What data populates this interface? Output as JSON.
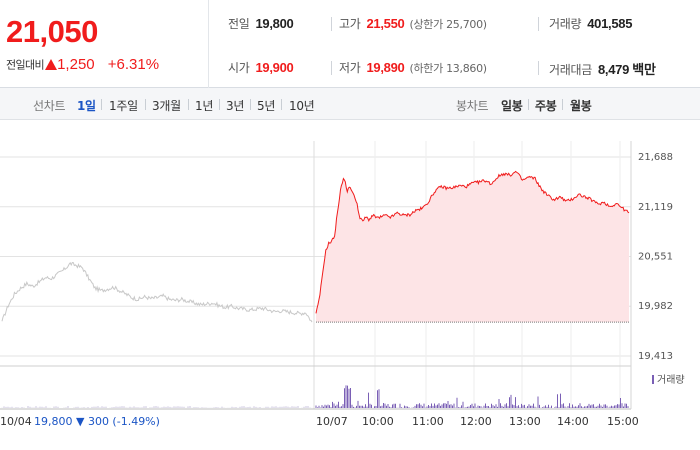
{
  "quote": {
    "price": "21,050",
    "change_caption": "전일대비",
    "change_amount": "1,250",
    "change_rate": "+6.31%",
    "direction": "up",
    "up_color": "#f01c1c",
    "down_color": "#1b55c5"
  },
  "stats": {
    "prev_close": {
      "label": "전일",
      "value": "19,800"
    },
    "high": {
      "label": "고가",
      "value": "21,550",
      "sub": "(상한가 25,700)"
    },
    "volume": {
      "label": "거래량",
      "value": "401,585"
    },
    "open": {
      "label": "시가",
      "value": "19,900"
    },
    "low": {
      "label": "저가",
      "value": "19,890",
      "sub": "(하한가 13,860)"
    },
    "trade_value": {
      "label": "거래대금",
      "value": "8,479 백만"
    }
  },
  "line_tabs": {
    "caption": "선차트",
    "items": [
      {
        "label": "1일",
        "active": true
      },
      {
        "label": "1주일",
        "active": false
      },
      {
        "label": "3개월",
        "active": false
      },
      {
        "label": "1년",
        "active": false
      },
      {
        "label": "3년",
        "active": false
      },
      {
        "label": "5년",
        "active": false
      },
      {
        "label": "10년",
        "active": false
      }
    ]
  },
  "candle_tabs": {
    "caption": "봉차트",
    "items": [
      {
        "label": "일봉"
      },
      {
        "label": "주봉"
      },
      {
        "label": "월봉"
      }
    ]
  },
  "chart": {
    "prev_day": {
      "date": "10/04",
      "close": "19,800",
      "change": "300",
      "rate": "(-1.49%)"
    },
    "volume_legend": "거래량",
    "colors": {
      "today_line": "#f01c1c",
      "today_fill": "#fde4e6",
      "prev_line": "#c8c8c8",
      "volume_bar": "#7a5fb5",
      "grid": "#e3e3e3"
    }
  },
  "chart_data": {
    "type": "line",
    "title": "",
    "y_ticks": [
      "21,688",
      "21,119",
      "20,551",
      "19,982",
      "19,413"
    ],
    "y_tick_values": [
      21688,
      21119,
      20551,
      19982,
      19413
    ],
    "ylim": [
      19413,
      21688
    ],
    "x_labels": [
      "10/04",
      "10/07",
      "10:00",
      "11:00",
      "12:00",
      "13:00",
      "14:00",
      "15:00"
    ],
    "reference_value": 19800,
    "series": [
      {
        "day": "10/04",
        "points": [
          [
            0,
            19810
          ],
          [
            0.02,
            19990
          ],
          [
            0.04,
            20120
          ],
          [
            0.06,
            20190
          ],
          [
            0.08,
            20240
          ],
          [
            0.1,
            20210
          ],
          [
            0.12,
            20260
          ],
          [
            0.14,
            20310
          ],
          [
            0.16,
            20300
          ],
          [
            0.18,
            20350
          ],
          [
            0.2,
            20400
          ],
          [
            0.22,
            20470
          ],
          [
            0.24,
            20450
          ],
          [
            0.26,
            20420
          ],
          [
            0.28,
            20300
          ],
          [
            0.3,
            20190
          ],
          [
            0.32,
            20160
          ],
          [
            0.34,
            20180
          ],
          [
            0.36,
            20200
          ],
          [
            0.38,
            20160
          ],
          [
            0.4,
            20120
          ],
          [
            0.42,
            20080
          ],
          [
            0.44,
            20060
          ],
          [
            0.46,
            20090
          ],
          [
            0.48,
            20070
          ],
          [
            0.5,
            20080
          ],
          [
            0.52,
            20100
          ],
          [
            0.54,
            20060
          ],
          [
            0.56,
            20050
          ],
          [
            0.58,
            20060
          ],
          [
            0.6,
            20040
          ],
          [
            0.62,
            20020
          ],
          [
            0.64,
            20000
          ],
          [
            0.66,
            20010
          ],
          [
            0.68,
            20020
          ],
          [
            0.7,
            19990
          ],
          [
            0.72,
            19970
          ],
          [
            0.74,
            19980
          ],
          [
            0.76,
            19960
          ],
          [
            0.78,
            19950
          ],
          [
            0.8,
            19940
          ],
          [
            0.82,
            19950
          ],
          [
            0.84,
            19960
          ],
          [
            0.86,
            19940
          ],
          [
            0.88,
            19920
          ],
          [
            0.9,
            19930
          ],
          [
            0.92,
            19920
          ],
          [
            0.94,
            19910
          ],
          [
            0.96,
            19900
          ],
          [
            0.98,
            19910
          ],
          [
            1.0,
            19800
          ]
        ]
      },
      {
        "day": "10/07",
        "points": [
          [
            0,
            19900
          ],
          [
            0.01,
            20050
          ],
          [
            0.02,
            20320
          ],
          [
            0.03,
            20600
          ],
          [
            0.04,
            20700
          ],
          [
            0.05,
            20720
          ],
          [
            0.06,
            20800
          ],
          [
            0.07,
            21100
          ],
          [
            0.08,
            21350
          ],
          [
            0.09,
            21450
          ],
          [
            0.1,
            21300
          ],
          [
            0.11,
            21350
          ],
          [
            0.12,
            21250
          ],
          [
            0.13,
            21180
          ],
          [
            0.14,
            20980
          ],
          [
            0.15,
            20960
          ],
          [
            0.16,
            21000
          ],
          [
            0.17,
            20970
          ],
          [
            0.18,
            21020
          ],
          [
            0.2,
            20990
          ],
          [
            0.22,
            21020
          ],
          [
            0.24,
            21000
          ],
          [
            0.26,
            21050
          ],
          [
            0.28,
            21020
          ],
          [
            0.3,
            21030
          ],
          [
            0.32,
            21080
          ],
          [
            0.34,
            21100
          ],
          [
            0.36,
            21180
          ],
          [
            0.38,
            21300
          ],
          [
            0.4,
            21350
          ],
          [
            0.42,
            21330
          ],
          [
            0.44,
            21340
          ],
          [
            0.46,
            21360
          ],
          [
            0.48,
            21350
          ],
          [
            0.5,
            21390
          ],
          [
            0.52,
            21400
          ],
          [
            0.54,
            21420
          ],
          [
            0.56,
            21380
          ],
          [
            0.58,
            21460
          ],
          [
            0.6,
            21500
          ],
          [
            0.62,
            21480
          ],
          [
            0.64,
            21520
          ],
          [
            0.66,
            21420
          ],
          [
            0.68,
            21460
          ],
          [
            0.7,
            21440
          ],
          [
            0.72,
            21320
          ],
          [
            0.74,
            21250
          ],
          [
            0.76,
            21200
          ],
          [
            0.78,
            21230
          ],
          [
            0.8,
            21180
          ],
          [
            0.82,
            21210
          ],
          [
            0.84,
            21260
          ],
          [
            0.86,
            21230
          ],
          [
            0.88,
            21200
          ],
          [
            0.9,
            21150
          ],
          [
            0.92,
            21170
          ],
          [
            0.94,
            21120
          ],
          [
            0.96,
            21160
          ],
          [
            0.98,
            21100
          ],
          [
            1.0,
            21050
          ]
        ]
      }
    ]
  }
}
